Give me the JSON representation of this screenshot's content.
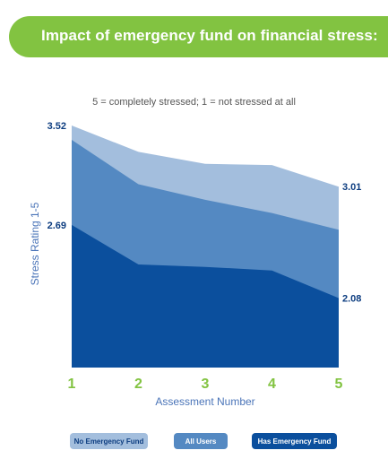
{
  "chart_data": {
    "type": "area",
    "title": "Impact of emergency fund on financial stress:",
    "subtitle": "5 = completely stressed; 1 = not stressed at all",
    "xlabel": "Assessment Number",
    "ylabel": "Stress Rating 1-5",
    "categories": [
      "1",
      "2",
      "3",
      "4",
      "5"
    ],
    "ylim": [
      1.5,
      3.6
    ],
    "series": [
      {
        "name": "No Emergency Fund",
        "color": "#a3bedd",
        "values": [
          3.52,
          3.3,
          3.2,
          3.19,
          3.01
        ]
      },
      {
        "name": "All Users",
        "color": "#5489c2",
        "values": [
          3.4,
          3.03,
          2.9,
          2.79,
          2.65
        ]
      },
      {
        "name": "Has Emergency Fund",
        "color": "#0b4f9d",
        "values": [
          2.69,
          2.36,
          2.34,
          2.31,
          2.08
        ]
      }
    ],
    "data_labels": [
      {
        "series": "No Emergency Fund",
        "index": 0,
        "text": "3.52",
        "side": "left"
      },
      {
        "series": "Has Emergency Fund",
        "index": 0,
        "text": "2.69",
        "side": "left"
      },
      {
        "series": "No Emergency Fund",
        "index": 4,
        "text": "3.01",
        "side": "right"
      },
      {
        "series": "Has Emergency Fund",
        "index": 4,
        "text": "2.08",
        "side": "right"
      }
    ],
    "colors": {
      "tick": "#82c341",
      "axis_label": "#4a74b8",
      "data_label": "#0d3d80",
      "banner": "#82c341"
    }
  },
  "legend": {
    "no_fund": "No Emergency Fund",
    "all_users": "All Users",
    "has_fund": "Has Emergency Fund"
  }
}
